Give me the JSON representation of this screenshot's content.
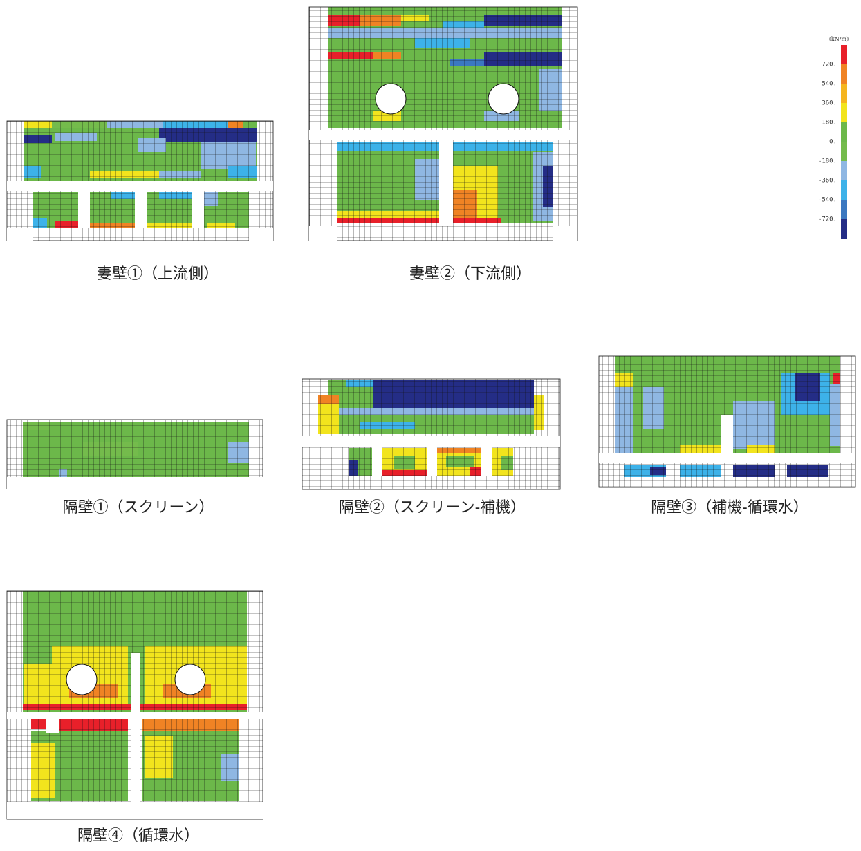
{
  "legend": {
    "unit": "(kN/m)",
    "labels": [
      "720.",
      "540.",
      "360.",
      "180.",
      "0.",
      "-180.",
      "-360.",
      "-540.",
      "-720."
    ],
    "colors": [
      "#e8202a",
      "#f08324",
      "#f5b51f",
      "#f2e41d",
      "#6cb84a",
      "#74bb4c",
      "#8fb7e3",
      "#3db2e9",
      "#3b78c0",
      "#242d86"
    ]
  },
  "panels": [
    {
      "caption": "妻壁①（上流側）"
    },
    {
      "caption": "妻壁②（下流側）"
    },
    {
      "caption": "隔壁①（スクリーン）"
    },
    {
      "caption": "隔壁②（スクリーン-補機）"
    },
    {
      "caption": "隔壁③（補機-循環水）"
    },
    {
      "caption": "隔壁④（循環水）"
    }
  ]
}
